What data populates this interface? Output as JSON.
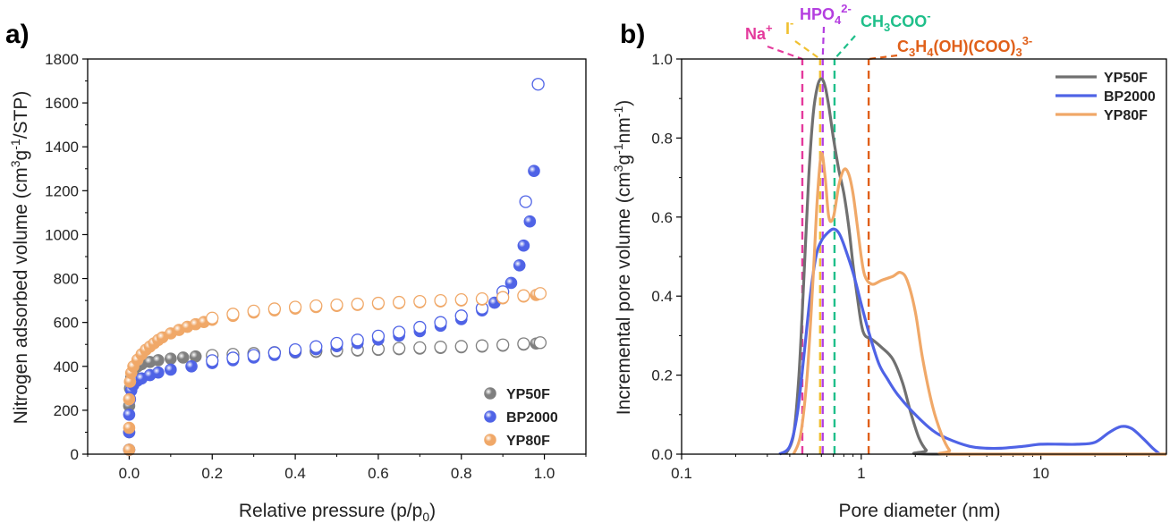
{
  "chart_data": [
    {
      "panel_label": "a)",
      "type": "scatter",
      "xlabel": "Relative pressure (p/p",
      "xlabel_sub": "0",
      "xlabel_end": ")",
      "ylabel": "Nitrogen adsorbed volume (cm",
      "ylabel_sup1": "3",
      "ylabel_mid": "g",
      "ylabel_sup2": "-1",
      "ylabel_end": "/STP)",
      "xlim": [
        -0.1,
        1.1
      ],
      "ylim": [
        0,
        1800
      ],
      "xticks": [
        0.0,
        0.2,
        0.4,
        0.6,
        0.8,
        1.0
      ],
      "xtick_labels": [
        "0.0",
        "0.2",
        "0.4",
        "0.6",
        "0.8",
        "1.0"
      ],
      "yticks": [
        0,
        200,
        400,
        600,
        800,
        1000,
        1200,
        1400,
        1600,
        1800
      ],
      "ytick_labels": [
        "0",
        "200",
        "400",
        "600",
        "800",
        "1000",
        "1200",
        "1400",
        "1600",
        "1800"
      ],
      "legend_position": "bottom-right",
      "series": [
        {
          "name": "YP50F",
          "color": "#7f7f7f",
          "adsorption": [
            [
              0.0,
              20
            ],
            [
              0.0,
              100
            ],
            [
              0.0,
              220
            ],
            [
              0.002,
              300
            ],
            [
              0.005,
              350
            ],
            [
              0.01,
              380
            ],
            [
              0.02,
              400
            ],
            [
              0.03,
              410
            ],
            [
              0.05,
              420
            ],
            [
              0.07,
              428
            ],
            [
              0.1,
              435
            ],
            [
              0.13,
              440
            ],
            [
              0.16,
              445
            ],
            [
              0.2,
              448
            ],
            [
              0.25,
              452
            ],
            [
              0.3,
              456
            ],
            [
              0.35,
              460
            ],
            [
              0.4,
              463
            ],
            [
              0.45,
              466
            ],
            [
              0.5,
              469
            ],
            [
              0.55,
              472
            ],
            [
              0.6,
              475
            ],
            [
              0.65,
              478
            ],
            [
              0.7,
              481
            ],
            [
              0.75,
              484
            ],
            [
              0.8,
              487
            ],
            [
              0.85,
              490
            ],
            [
              0.9,
              494
            ],
            [
              0.95,
              499
            ],
            [
              0.98,
              504
            ]
          ],
          "desorption": [
            [
              0.99,
              508
            ],
            [
              0.95,
              503
            ],
            [
              0.9,
              498
            ],
            [
              0.85,
              494
            ],
            [
              0.8,
              491
            ],
            [
              0.75,
              488
            ],
            [
              0.7,
              485
            ],
            [
              0.65,
              482
            ],
            [
              0.6,
              479
            ],
            [
              0.55,
              476
            ],
            [
              0.5,
              473
            ],
            [
              0.45,
              470
            ],
            [
              0.4,
              467
            ],
            [
              0.35,
              463
            ],
            [
              0.3,
              459
            ],
            [
              0.25,
              455
            ],
            [
              0.2,
              450
            ]
          ]
        },
        {
          "name": "BP2000",
          "color": "#4f63e6",
          "adsorption": [
            [
              0.0,
              20
            ],
            [
              0.0,
              100
            ],
            [
              0.0,
              180
            ],
            [
              0.002,
              250
            ],
            [
              0.005,
              290
            ],
            [
              0.01,
              315
            ],
            [
              0.02,
              335
            ],
            [
              0.03,
              345
            ],
            [
              0.05,
              360
            ],
            [
              0.07,
              372
            ],
            [
              0.1,
              385
            ],
            [
              0.15,
              400
            ],
            [
              0.2,
              415
            ],
            [
              0.25,
              428
            ],
            [
              0.3,
              440
            ],
            [
              0.35,
              452
            ],
            [
              0.4,
              465
            ],
            [
              0.45,
              478
            ],
            [
              0.5,
              492
            ],
            [
              0.55,
              506
            ],
            [
              0.6,
              522
            ],
            [
              0.65,
              540
            ],
            [
              0.7,
              560
            ],
            [
              0.75,
              585
            ],
            [
              0.8,
              615
            ],
            [
              0.85,
              655
            ],
            [
              0.88,
              690
            ],
            [
              0.9,
              720
            ],
            [
              0.92,
              780
            ],
            [
              0.94,
              860
            ],
            [
              0.95,
              950
            ],
            [
              0.965,
              1060
            ],
            [
              0.975,
              1290
            ]
          ],
          "desorption": [
            [
              0.985,
              1685
            ],
            [
              0.955,
              1150
            ],
            [
              0.9,
              740
            ],
            [
              0.85,
              665
            ],
            [
              0.8,
              630
            ],
            [
              0.75,
              600
            ],
            [
              0.7,
              578
            ],
            [
              0.65,
              556
            ],
            [
              0.6,
              538
            ],
            [
              0.55,
              520
            ],
            [
              0.5,
              505
            ],
            [
              0.45,
              490
            ],
            [
              0.4,
              476
            ],
            [
              0.35,
              462
            ],
            [
              0.3,
              450
            ],
            [
              0.25,
              438
            ],
            [
              0.2,
              426
            ]
          ]
        },
        {
          "name": "YP80F",
          "color": "#f0a868",
          "adsorption": [
            [
              0.0,
              20
            ],
            [
              0.0,
              120
            ],
            [
              0.0,
              250
            ],
            [
              0.002,
              330
            ],
            [
              0.005,
              370
            ],
            [
              0.01,
              400
            ],
            [
              0.02,
              430
            ],
            [
              0.03,
              455
            ],
            [
              0.04,
              475
            ],
            [
              0.05,
              490
            ],
            [
              0.06,
              505
            ],
            [
              0.07,
              520
            ],
            [
              0.08,
              532
            ],
            [
              0.1,
              550
            ],
            [
              0.12,
              566
            ],
            [
              0.14,
              580
            ],
            [
              0.16,
              592
            ],
            [
              0.18,
              602
            ],
            [
              0.2,
              612
            ],
            [
              0.25,
              630
            ],
            [
              0.3,
              645
            ],
            [
              0.35,
              655
            ],
            [
              0.4,
              663
            ],
            [
              0.45,
              670
            ],
            [
              0.5,
              675
            ],
            [
              0.55,
              680
            ],
            [
              0.6,
              684
            ],
            [
              0.65,
              688
            ],
            [
              0.7,
              692
            ],
            [
              0.75,
              696
            ],
            [
              0.8,
              700
            ],
            [
              0.85,
              704
            ],
            [
              0.9,
              710
            ],
            [
              0.95,
              718
            ],
            [
              0.98,
              725
            ]
          ],
          "desorption": [
            [
              0.99,
              732
            ],
            [
              0.95,
              722
            ],
            [
              0.9,
              714
            ],
            [
              0.85,
              708
            ],
            [
              0.8,
              704
            ],
            [
              0.75,
              700
            ],
            [
              0.7,
              696
            ],
            [
              0.65,
              692
            ],
            [
              0.6,
              688
            ],
            [
              0.55,
              684
            ],
            [
              0.5,
              680
            ],
            [
              0.45,
              676
            ],
            [
              0.4,
              670
            ],
            [
              0.35,
              662
            ],
            [
              0.3,
              652
            ],
            [
              0.25,
              638
            ],
            [
              0.2,
              620
            ]
          ]
        }
      ]
    },
    {
      "panel_label": "b)",
      "type": "line",
      "x_scale": "log",
      "xlabel": "Pore diameter (nm)",
      "ylabel": "Incremental pore volume (cm",
      "ylabel_sup1": "3",
      "ylabel_mid": "g",
      "ylabel_sup2": "-1",
      "ylabel_mid2": "nm",
      "ylabel_sup3": "-1",
      "ylabel_end": ")",
      "xlim": [
        0.1,
        50
      ],
      "ylim": [
        0,
        1.0
      ],
      "xticks": [
        0.1,
        1,
        10
      ],
      "xtick_labels": [
        "0.1",
        "1",
        "10"
      ],
      "yticks": [
        0.0,
        0.2,
        0.4,
        0.6,
        0.8,
        1.0
      ],
      "ytick_labels": [
        "0.0",
        "0.2",
        "0.4",
        "0.6",
        "0.8",
        "1.0"
      ],
      "legend_position": "top-right",
      "series": [
        {
          "name": "YP50F",
          "color": "#707070",
          "points": [
            [
              0.38,
              0.0
            ],
            [
              0.42,
              0.05
            ],
            [
              0.45,
              0.2
            ],
            [
              0.48,
              0.45
            ],
            [
              0.51,
              0.7
            ],
            [
              0.54,
              0.86
            ],
            [
              0.57,
              0.93
            ],
            [
              0.6,
              0.95
            ],
            [
              0.63,
              0.93
            ],
            [
              0.66,
              0.88
            ],
            [
              0.7,
              0.8
            ],
            [
              0.75,
              0.72
            ],
            [
              0.8,
              0.66
            ],
            [
              0.85,
              0.58
            ],
            [
              0.9,
              0.48
            ],
            [
              0.95,
              0.4
            ],
            [
              1.0,
              0.33
            ],
            [
              1.05,
              0.3
            ],
            [
              1.15,
              0.29
            ],
            [
              1.3,
              0.27
            ],
            [
              1.5,
              0.24
            ],
            [
              1.7,
              0.18
            ],
            [
              1.9,
              0.1
            ],
            [
              2.1,
              0.04
            ],
            [
              2.3,
              0.01
            ],
            [
              2.5,
              0.0
            ],
            [
              50,
              0.0
            ]
          ]
        },
        {
          "name": "BP2000",
          "color": "#4f63e6",
          "points": [
            [
              0.35,
              0.0
            ],
            [
              0.4,
              0.02
            ],
            [
              0.44,
              0.1
            ],
            [
              0.48,
              0.25
            ],
            [
              0.52,
              0.4
            ],
            [
              0.56,
              0.5
            ],
            [
              0.6,
              0.54
            ],
            [
              0.65,
              0.56
            ],
            [
              0.7,
              0.57
            ],
            [
              0.75,
              0.56
            ],
            [
              0.8,
              0.53
            ],
            [
              0.9,
              0.46
            ],
            [
              1.0,
              0.38
            ],
            [
              1.1,
              0.31
            ],
            [
              1.25,
              0.23
            ],
            [
              1.4,
              0.19
            ],
            [
              1.6,
              0.15
            ],
            [
              2.0,
              0.1
            ],
            [
              2.5,
              0.06
            ],
            [
              3.0,
              0.04
            ],
            [
              4.0,
              0.02
            ],
            [
              5.0,
              0.015
            ],
            [
              6.0,
              0.015
            ],
            [
              8.0,
              0.02
            ],
            [
              10.0,
              0.025
            ],
            [
              13.0,
              0.025
            ],
            [
              16.0,
              0.025
            ],
            [
              20.0,
              0.03
            ],
            [
              24.0,
              0.055
            ],
            [
              28.0,
              0.07
            ],
            [
              32.0,
              0.065
            ],
            [
              37.0,
              0.04
            ],
            [
              42.0,
              0.015
            ],
            [
              46.0,
              0.0
            ]
          ]
        },
        {
          "name": "YP80F",
          "color": "#f0a868",
          "points": [
            [
              0.42,
              0.0
            ],
            [
              0.46,
              0.05
            ],
            [
              0.5,
              0.2
            ],
            [
              0.54,
              0.45
            ],
            [
              0.57,
              0.65
            ],
            [
              0.6,
              0.76
            ],
            [
              0.63,
              0.7
            ],
            [
              0.66,
              0.6
            ],
            [
              0.7,
              0.6
            ],
            [
              0.75,
              0.68
            ],
            [
              0.8,
              0.72
            ],
            [
              0.85,
              0.71
            ],
            [
              0.9,
              0.66
            ],
            [
              0.95,
              0.58
            ],
            [
              1.0,
              0.5
            ],
            [
              1.05,
              0.45
            ],
            [
              1.15,
              0.43
            ],
            [
              1.3,
              0.44
            ],
            [
              1.5,
              0.45
            ],
            [
              1.65,
              0.46
            ],
            [
              1.8,
              0.44
            ],
            [
              2.0,
              0.36
            ],
            [
              2.2,
              0.24
            ],
            [
              2.5,
              0.12
            ],
            [
              2.8,
              0.05
            ],
            [
              3.1,
              0.01
            ],
            [
              3.4,
              0.0
            ],
            [
              50,
              0.0
            ]
          ]
        }
      ],
      "ion_markers": [
        {
          "label": "Na",
          "sup": "+",
          "x": 0.47,
          "color": "#e43a9c"
        },
        {
          "label": "I",
          "sup": "-",
          "x": 0.59,
          "color": "#f0c030"
        },
        {
          "label": "HPO",
          "sub": "4",
          "sup": "2-",
          "x": 0.61,
          "color": "#b43ee0"
        },
        {
          "label": "CH",
          "sub": "3",
          "label2": "COO",
          "sup": "-",
          "x": 0.71,
          "color": "#1fbf8a"
        },
        {
          "label": "C",
          "sub": "3",
          "label2": "H",
          "sub2": "4",
          "label3": "(OH)(COO)",
          "sub3": "3",
          "sup": "3-",
          "x": 1.1,
          "color": "#e0601a"
        }
      ]
    }
  ]
}
